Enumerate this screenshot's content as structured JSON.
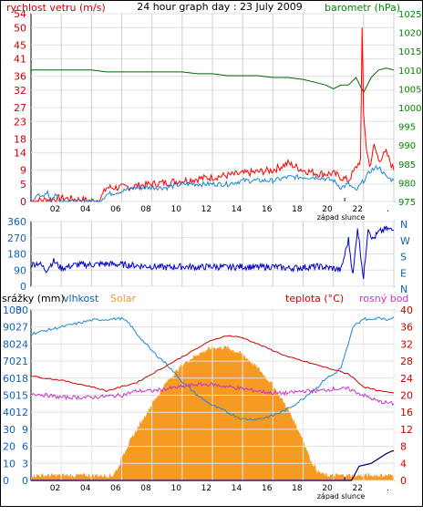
{
  "colors": {
    "wind": "#dd0000",
    "gust": "#ff0000",
    "baro": "#006600",
    "direction": "#0000cc",
    "humidity": "#1e88d0",
    "solar": "#f59a23",
    "temperature": "#cc0000",
    "dewpoint": "#cc33cc",
    "rain": "#000066",
    "sunset": "#000080",
    "axis_left_top": "#cc0000",
    "axis_right_top": "#008800",
    "axis_blue": "#1060c0",
    "axis_red": "#cc0000"
  },
  "chart_data": [
    {
      "type": "line",
      "title": "24 hour graph day : 23 July 2009",
      "left_label": "rychlost vetru (m/s)",
      "right_label": "barometr (hPa)",
      "x_ticks": [
        "02",
        "04",
        "06",
        "08",
        "10",
        "12",
        "14",
        "16",
        "18",
        "20",
        "22",
        "."
      ],
      "left_ticks": [
        0,
        5,
        9,
        14,
        18,
        23,
        27,
        32,
        36,
        41,
        45,
        50,
        54
      ],
      "left_tick_labels": [
        "0",
        "5",
        "9",
        "14",
        "18",
        "23",
        "27",
        "32",
        "36",
        "41",
        "45",
        "50",
        "54"
      ],
      "right_ticks": [
        975,
        980,
        985,
        990,
        995,
        1000,
        1005,
        1010,
        1015,
        1020,
        1025
      ],
      "ylim_left": [
        0,
        54
      ],
      "ylim_right": [
        975,
        1025
      ],
      "sunset_label": "západ slunce",
      "series": [
        {
          "name": "rychlost vetru",
          "x": [
            0,
            0.4,
            0.6,
            1.1,
            1.3,
            1.6,
            2.0,
            4.5,
            5.0,
            6.0,
            7.0,
            8.0,
            9.0,
            10.0,
            11.0,
            12.0,
            13.0,
            14.0,
            15.0,
            16.0,
            17.0,
            18.0,
            19.0,
            20.0,
            20.5,
            21.0,
            21.5,
            22.0,
            22.5,
            23.0,
            23.5,
            24.0
          ],
          "y": [
            0,
            2,
            1,
            3,
            0,
            2,
            0,
            0,
            2,
            3,
            4,
            4,
            4,
            5,
            5,
            5,
            5,
            6,
            6,
            6,
            7,
            7,
            7,
            6,
            4,
            5,
            3,
            6,
            9,
            10,
            7,
            6
          ]
        },
        {
          "name": "naraz vetru",
          "x": [
            0,
            2,
            4.5,
            5,
            6,
            8,
            10,
            12,
            14,
            16,
            17,
            18,
            19,
            20,
            21,
            21.8,
            21.9,
            22.0,
            22.2,
            22.4,
            22.7,
            23,
            23.5,
            24
          ],
          "y": [
            0,
            1,
            0,
            4,
            4,
            5,
            6,
            7,
            8,
            9,
            11,
            9,
            8,
            8,
            6,
            12,
            49,
            25,
            15,
            10,
            16,
            12,
            14,
            9
          ]
        },
        {
          "name": "barometr",
          "x": [
            0,
            1,
            2,
            3,
            4,
            5,
            6,
            7,
            8,
            9,
            10,
            11,
            12,
            13,
            14,
            15,
            16,
            17,
            18,
            19,
            19.5,
            20,
            20.5,
            21,
            21.5,
            22,
            22.5,
            23,
            23.5,
            24
          ],
          "y": [
            1010,
            1010,
            1010,
            1010,
            1010,
            1009.5,
            1009.5,
            1009.5,
            1009.5,
            1009.5,
            1009.5,
            1009,
            1009,
            1008.5,
            1008.5,
            1008.5,
            1008,
            1008,
            1007.5,
            1006.5,
            1006,
            1005,
            1006,
            1006,
            1008,
            1004,
            1008,
            1010,
            1010.5,
            1010
          ]
        }
      ]
    },
    {
      "type": "line",
      "right_letters": [
        "N",
        "W",
        "S",
        "E",
        "N"
      ],
      "left_ticks": [
        0,
        90,
        180,
        270,
        360
      ],
      "left_tick_labels": [
        "0",
        "90",
        "180",
        "270",
        "360"
      ],
      "ylim": [
        0,
        360
      ],
      "series": [
        {
          "name": "smer vetru",
          "x": [
            0,
            0.5,
            1,
            1.5,
            2,
            2.5,
            3,
            4,
            5,
            6,
            7,
            8,
            9,
            10,
            11,
            12,
            13,
            14,
            15,
            16,
            17,
            18,
            19,
            20,
            20.5,
            21,
            21.3,
            21.6,
            22,
            22.3,
            22.6,
            23,
            23.5,
            24
          ],
          "y": [
            120,
            130,
            90,
            140,
            100,
            110,
            120,
            120,
            125,
            120,
            115,
            110,
            105,
            110,
            105,
            110,
            105,
            110,
            105,
            110,
            100,
            105,
            110,
            100,
            90,
            260,
            60,
            330,
            40,
            330,
            260,
            300,
            320,
            310
          ]
        }
      ]
    },
    {
      "type": "line",
      "labels": {
        "rain": "srážky (mm)",
        "humidity": "vlhkost",
        "solar": "Solar",
        "temperature": "teplota (°C)",
        "dewpoint": "rosný bod"
      },
      "x_ticks": [
        "02",
        "04",
        "06",
        "08",
        "10",
        "12",
        "14",
        "16",
        "18",
        "20",
        "22",
        "."
      ],
      "left_humidity_ticks": [
        0,
        10,
        20,
        30,
        40,
        50,
        60,
        70,
        80,
        90,
        100
      ],
      "left_rain_ticks": [
        0,
        3,
        6,
        9,
        12,
        15,
        18,
        21,
        24,
        27,
        30
      ],
      "left_labels_paired": [
        "0",
        "10 3",
        "20 6",
        "30 9",
        "40 12",
        "50 15",
        "60 18",
        "70 21",
        "80 24",
        "90 27",
        "100 30"
      ],
      "right_temp_ticks": [
        0,
        4,
        8,
        12,
        16,
        20,
        24,
        28,
        32,
        36,
        40
      ],
      "right_temp_labels": [
        "0",
        "4",
        "8",
        "12",
        "16",
        "20",
        "24",
        "28",
        "32",
        "36",
        "40"
      ],
      "sunset_label": "západ slunce",
      "series": [
        {
          "name": "vlhkost",
          "x": [
            0,
            2,
            4,
            6,
            6.5,
            7,
            8,
            9,
            10,
            11,
            12,
            13,
            14,
            15,
            16,
            17,
            18,
            18.5,
            19,
            19.5,
            20,
            20.5,
            21,
            21.3,
            22,
            22.5,
            23,
            23.5,
            24
          ],
          "y": [
            86,
            90,
            94,
            95,
            92,
            86,
            76,
            68,
            58,
            50,
            44,
            40,
            36,
            36,
            38,
            42,
            48,
            52,
            55,
            60,
            62,
            66,
            80,
            90,
            95,
            94,
            96,
            94,
            96
          ]
        },
        {
          "name": "Solar",
          "x": [
            0,
            4,
            5,
            5.4,
            5.8,
            6,
            7,
            8,
            9,
            10,
            11,
            12,
            13,
            14,
            15,
            16,
            17,
            18,
            18.5,
            19,
            19.5,
            24
          ],
          "y": [
            3,
            3,
            3,
            3,
            8,
            14,
            30,
            45,
            58,
            68,
            74,
            78,
            78,
            74,
            66,
            56,
            42,
            24,
            12,
            5,
            3,
            3
          ]
        },
        {
          "name": "teplota",
          "x": [
            0,
            2,
            4,
            5,
            6,
            7,
            8,
            9,
            10,
            11,
            12,
            13,
            14,
            15,
            16,
            17,
            18,
            19,
            20,
            21,
            22,
            23,
            24
          ],
          "y": [
            24.5,
            23.5,
            22,
            21,
            22,
            23,
            25,
            27,
            29,
            31,
            33,
            34,
            33.5,
            32,
            30.5,
            29,
            28,
            27,
            26,
            25,
            22,
            21,
            20.5
          ]
        },
        {
          "name": "rosný bod",
          "x": [
            0,
            2,
            4,
            6,
            7,
            8,
            9,
            10,
            11,
            12,
            13,
            14,
            15,
            16,
            17,
            18,
            19,
            20,
            21,
            22,
            23,
            24
          ],
          "y": [
            20.5,
            19.5,
            19.5,
            20,
            21,
            21,
            21.5,
            22,
            22.5,
            22.5,
            22,
            21.5,
            21,
            20.5,
            20.5,
            21,
            21,
            21.5,
            21.5,
            20,
            18.5,
            18
          ]
        },
        {
          "name": "srážky",
          "x": [
            0,
            20,
            20.4,
            21.2,
            21.7,
            22.5,
            23.5,
            23.9,
            24
          ],
          "y": [
            0,
            0,
            0,
            0,
            2.5,
            3.0,
            4.7,
            5.2,
            5.2
          ]
        }
      ]
    }
  ]
}
